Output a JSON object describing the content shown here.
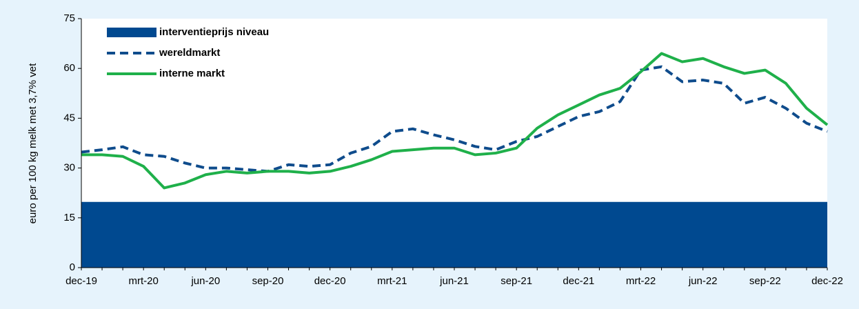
{
  "chart_data": {
    "type": "line",
    "y_label": "euro per 100 kg melk met 3,7% vet",
    "categories": [
      "dec-19",
      null,
      null,
      "mrt-20",
      null,
      null,
      "jun-20",
      null,
      null,
      "sep-20",
      null,
      null,
      "dec-20",
      null,
      null,
      "mrt-21",
      null,
      null,
      "jun-21",
      null,
      null,
      "sep-21",
      null,
      null,
      "dec-21",
      null,
      null,
      "mrt-22",
      null,
      null,
      "jun-22",
      null,
      null,
      "sep-22",
      null,
      null,
      "dec-22"
    ],
    "series": [
      {
        "name": "interventieprijs niveau",
        "style": "area",
        "color": "#004990",
        "values": [
          19.8,
          19.8,
          19.8,
          19.8,
          19.8,
          19.8,
          19.8,
          19.8,
          19.8,
          19.8,
          19.8,
          19.8,
          19.8,
          19.8,
          19.8,
          19.8,
          19.8,
          19.8,
          19.8,
          19.8,
          19.8,
          19.8,
          19.8,
          19.8,
          19.8,
          19.8,
          19.8,
          19.8,
          19.8,
          19.8,
          19.8,
          19.8,
          19.8,
          19.8,
          19.8,
          19.8,
          19.8
        ]
      },
      {
        "name": "wereldmarkt",
        "style": "dashed",
        "color": "#0f4c8c",
        "values": [
          34.8,
          35.5,
          36.4,
          34,
          33.5,
          31.5,
          30,
          30,
          29.5,
          29,
          31,
          30.5,
          31,
          34.5,
          36.5,
          41,
          41.8,
          40,
          38.5,
          36.5,
          35.5,
          38,
          39.5,
          42.5,
          45.5,
          47,
          50,
          59.5,
          60.5,
          56,
          56.5,
          55.5,
          49.5,
          51.3,
          48,
          43.5,
          41
        ]
      },
      {
        "name": "interne markt",
        "style": "solid",
        "color": "#1fb04a",
        "values": [
          34,
          34,
          33.5,
          30.5,
          24,
          25.5,
          28,
          29,
          28.5,
          29,
          29,
          28.5,
          29,
          30.5,
          32.5,
          35,
          35.5,
          36,
          36,
          34,
          34.5,
          36,
          42,
          46,
          49,
          52,
          54,
          59,
          64.5,
          62,
          63,
          60.5,
          58.5,
          59.5,
          55.5,
          48,
          43
        ]
      }
    ],
    "ylim": [
      0,
      75
    ],
    "yticks": [
      0,
      15,
      30,
      45,
      60,
      75
    ],
    "legend": "top-left"
  }
}
